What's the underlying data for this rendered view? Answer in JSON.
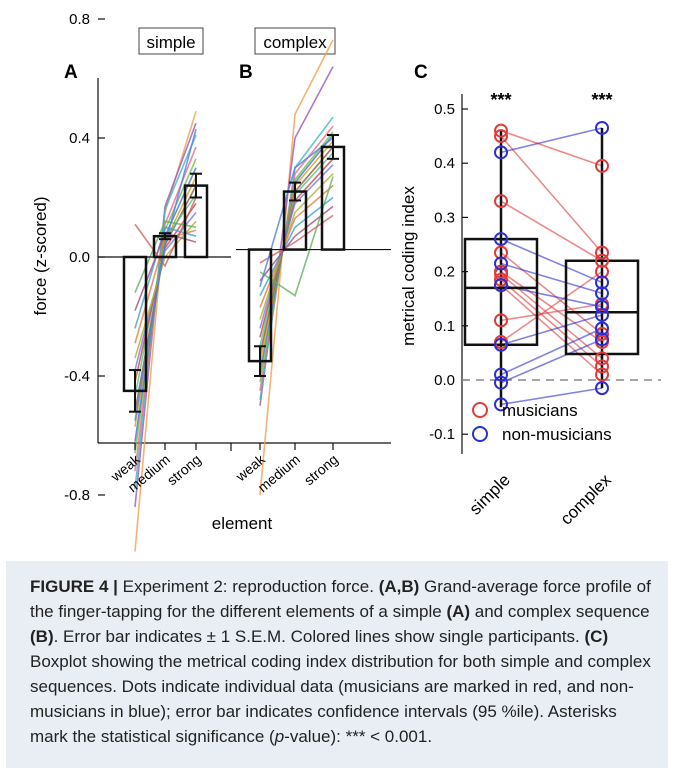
{
  "figure": {
    "panel_a": {
      "label": "A",
      "tag": "simple",
      "y_ticks": [
        "0.8",
        "0.4",
        "0.0",
        "-0.4",
        "-0.8"
      ],
      "x_ticks": [
        "weak",
        "medium",
        "strong"
      ],
      "ylabel": "force (z-scored)"
    },
    "panel_b": {
      "label": "B",
      "tag": "complex",
      "x_ticks": [
        "weak",
        "medium",
        "strong"
      ]
    },
    "shared_xlabel": "element",
    "panel_c": {
      "label": "C",
      "y_ticks": [
        "0.5",
        "0.4",
        "0.3",
        "0.2",
        "0.1",
        "0.0",
        "-0.1"
      ],
      "ylabel": "metrical coding index",
      "x_ticks": [
        "simple",
        "complex"
      ],
      "sig": [
        "***",
        "***"
      ],
      "legend": [
        "musicians",
        "non-musicians"
      ]
    }
  },
  "colors": {
    "musicians": "#e23b3b",
    "non_musicians": "#2e2ed6",
    "frame_bg": "#e9eef4"
  },
  "chart_data": [
    {
      "type": "bar",
      "panel": "A",
      "categories": [
        "weak",
        "medium",
        "strong"
      ],
      "values": [
        -0.45,
        0.07,
        0.24
      ],
      "errors": [
        0.07,
        0.01,
        0.04
      ],
      "ylabel": "force (z-scored)",
      "ylim": [
        -1.0,
        1.0
      ],
      "participants": [
        [
          -0.99,
          0.15,
          0.49
        ],
        [
          -0.84,
          0.17,
          0.45
        ],
        [
          -0.78,
          0.16,
          0.41
        ],
        [
          -0.72,
          0.11,
          0.37
        ],
        [
          -0.66,
          0.09,
          0.33
        ],
        [
          -0.62,
          0.07,
          0.3
        ],
        [
          -0.57,
          0.05,
          0.27
        ],
        [
          -0.52,
          0.04,
          0.24
        ],
        [
          -0.47,
          0.06,
          0.21
        ],
        [
          -0.42,
          0.03,
          0.18
        ],
        [
          -0.38,
          0.02,
          0.15
        ],
        [
          -0.34,
          0.0,
          0.12
        ],
        [
          -0.29,
          0.06,
          0.09
        ],
        [
          -0.24,
          0.1,
          0.07
        ],
        [
          -0.18,
          0.08,
          0.05
        ],
        [
          -0.12,
          0.12,
          0.1
        ],
        [
          0.11,
          -0.03,
          0.2
        ],
        [
          -0.55,
          0.04,
          0.43
        ]
      ]
    },
    {
      "type": "bar",
      "panel": "B",
      "categories": [
        "weak",
        "medium",
        "strong"
      ],
      "values": [
        -0.35,
        0.22,
        0.37
      ],
      "errors": [
        0.05,
        0.03,
        0.04
      ],
      "ylim": [
        -1.0,
        1.0
      ],
      "participants": [
        [
          -0.8,
          0.48,
          0.73
        ],
        [
          -0.5,
          0.4,
          0.64
        ],
        [
          -0.48,
          0.3,
          0.47
        ],
        [
          -0.45,
          0.28,
          0.44
        ],
        [
          -0.42,
          0.26,
          0.42
        ],
        [
          -0.39,
          0.25,
          0.41
        ],
        [
          -0.36,
          0.24,
          0.39
        ],
        [
          -0.33,
          0.22,
          0.37
        ],
        [
          -0.3,
          0.21,
          0.35
        ],
        [
          -0.27,
          0.19,
          0.33
        ],
        [
          -0.24,
          0.18,
          0.31
        ],
        [
          -0.21,
          0.15,
          0.28
        ],
        [
          -0.17,
          0.13,
          0.24
        ],
        [
          -0.13,
          0.1,
          0.2
        ],
        [
          -0.08,
          0.07,
          0.17
        ],
        [
          -0.05,
          -0.13,
          0.27
        ],
        [
          -0.02,
          0.05,
          0.14
        ],
        [
          -0.1,
          0.3,
          0.4
        ]
      ]
    },
    {
      "type": "box",
      "panel": "C",
      "categories": [
        "simple",
        "complex"
      ],
      "ylabel": "metrical coding index",
      "ylim": [
        -0.15,
        0.55
      ],
      "boxes": [
        {
          "min": -0.05,
          "q1": 0.065,
          "median": 0.17,
          "q3": 0.26,
          "max": 0.46
        },
        {
          "min": -0.015,
          "q1": 0.048,
          "median": 0.125,
          "q3": 0.22,
          "max": 0.465
        }
      ],
      "series": [
        {
          "name": "musicians",
          "simple": [
            0.46,
            0.45,
            0.33,
            0.235,
            0.2,
            0.195,
            0.185,
            0.175,
            0.11,
            0.07
          ],
          "complex": [
            0.395,
            0.235,
            0.22,
            0.085,
            0.07,
            0.04,
            0.025,
            0.01,
            0.14,
            0.2
          ]
        },
        {
          "name": "non-musicians",
          "simple": [
            0.42,
            0.26,
            0.215,
            0.065,
            0.01,
            -0.005,
            -0.045,
            0.175
          ],
          "complex": [
            0.465,
            0.18,
            0.16,
            0.12,
            0.095,
            0.075,
            -0.015,
            0.135
          ]
        }
      ]
    }
  ],
  "caption": {
    "fig_label": "FIGURE 4 |",
    "title": " Experiment 2: reproduction force. ",
    "ab_ref": "(A,B)",
    "s1": " Grand-average force profile of the finger-tapping for the different elements of a simple ",
    "a_ref": "(A)",
    "s2": " and complex sequence ",
    "b_ref": "(B)",
    "s3": ". Error bar indicates ± 1 S.E.M. Colored lines show single participants. ",
    "c_ref": "(C)",
    "s4": " Boxplot showing the metrical coding index distribution for both simple and complex sequences. Dots indicate individual data (musicians are marked in red, and non-musicians in blue); error bar indicates confidence intervals (95 %ile). Asterisks mark the statistical significance (",
    "p": "p",
    "s5": "-value): *** < 0.001."
  }
}
